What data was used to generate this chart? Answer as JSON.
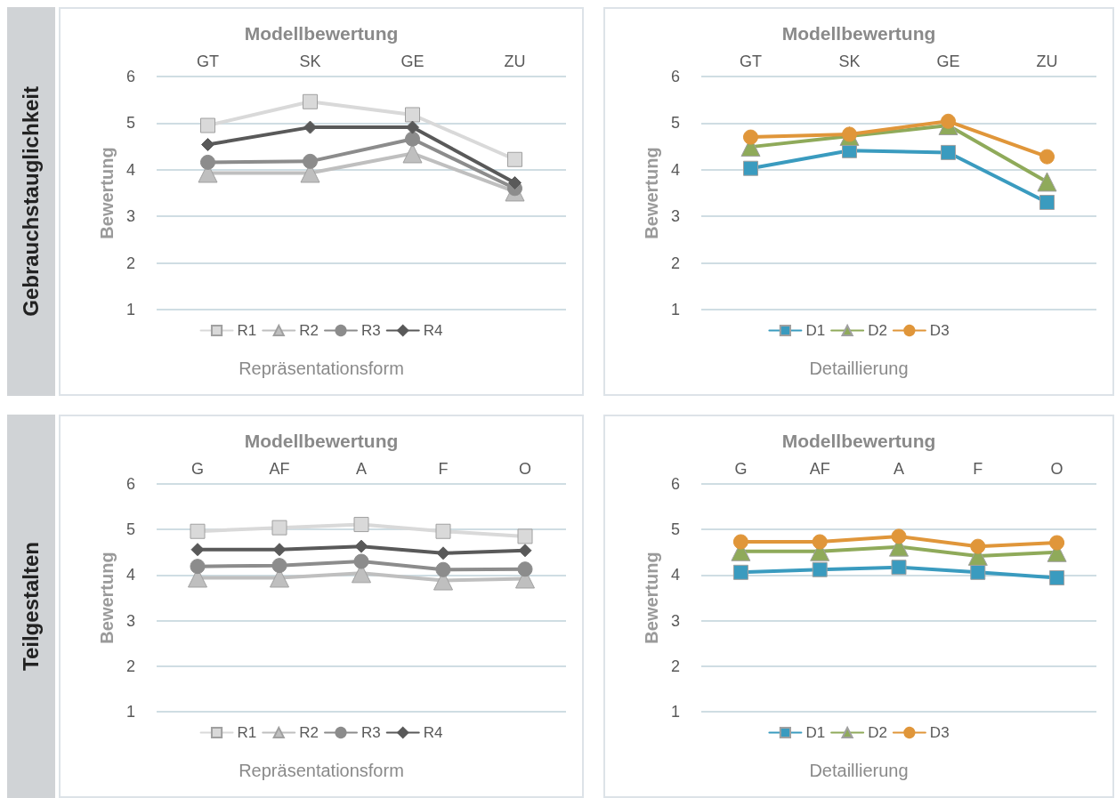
{
  "chart_data": [
    {
      "type": "line",
      "title": "Modellbewertung",
      "xlabel": "Repräsentationsform",
      "ylabel": "Bewertung",
      "annotations": [
        "Gebrauchstauglichkeit"
      ],
      "categories": [
        "GT",
        "SK",
        "GE",
        "ZU"
      ],
      "ylim": [
        1,
        6
      ],
      "yticks": [
        1,
        2,
        3,
        4,
        5,
        6
      ],
      "grid": "y",
      "legend": "bottom",
      "line_style": "solid",
      "series": [
        {
          "name": "R1",
          "color": "#d9d9d9",
          "marker": "square",
          "values": [
            4.95,
            5.46,
            5.18,
            4.22
          ]
        },
        {
          "name": "R2",
          "color": "#bfbfbf",
          "marker": "triangle",
          "values": [
            3.93,
            3.93,
            4.35,
            3.53
          ]
        },
        {
          "name": "R3",
          "color": "#8c8c8c",
          "marker": "circle",
          "values": [
            4.16,
            4.18,
            4.66,
            3.6
          ]
        },
        {
          "name": "R4",
          "color": "#595959",
          "marker": "diamond",
          "values": [
            4.54,
            4.91,
            4.91,
            3.72
          ]
        }
      ]
    },
    {
      "type": "line",
      "title": "Modellbewertung",
      "xlabel": "Detaillierung",
      "ylabel": "Bewertung",
      "categories": [
        "GT",
        "SK",
        "GE",
        "ZU"
      ],
      "ylim": [
        1,
        6
      ],
      "yticks": [
        1,
        2,
        3,
        4,
        5,
        6
      ],
      "grid": "y",
      "legend": "bottom",
      "line_style": "solid",
      "series": [
        {
          "name": "D1",
          "color": "#3a9bbf",
          "marker": "square",
          "values": [
            4.03,
            4.41,
            4.37,
            3.3
          ]
        },
        {
          "name": "D2",
          "color": "#8faa5a",
          "marker": "triangle",
          "values": [
            4.49,
            4.72,
            4.95,
            3.74
          ]
        },
        {
          "name": "D3",
          "color": "#e0963a",
          "marker": "circle",
          "values": [
            4.7,
            4.76,
            5.04,
            4.28
          ]
        }
      ]
    },
    {
      "type": "line",
      "title": "Modellbewertung",
      "xlabel": "Repräsentationsform",
      "ylabel": "Bewertung",
      "annotations": [
        "Teilgestalten"
      ],
      "categories": [
        "G",
        "AF",
        "A",
        "F",
        "O"
      ],
      "ylim": [
        1,
        6
      ],
      "yticks": [
        1,
        2,
        3,
        4,
        5,
        6
      ],
      "grid": "y",
      "legend": "bottom",
      "line_style": "solid",
      "series": [
        {
          "name": "R1",
          "color": "#d9d9d9",
          "marker": "square",
          "values": [
            4.96,
            5.04,
            5.11,
            4.96,
            4.85
          ]
        },
        {
          "name": "R2",
          "color": "#bfbfbf",
          "marker": "triangle",
          "values": [
            3.94,
            3.94,
            4.04,
            3.88,
            3.92
          ]
        },
        {
          "name": "R3",
          "color": "#8c8c8c",
          "marker": "circle",
          "values": [
            4.19,
            4.21,
            4.3,
            4.12,
            4.13
          ]
        },
        {
          "name": "R4",
          "color": "#595959",
          "marker": "diamond",
          "values": [
            4.56,
            4.56,
            4.63,
            4.48,
            4.54
          ]
        }
      ]
    },
    {
      "type": "line",
      "title": "Modellbewertung",
      "xlabel": "Detaillierung",
      "ylabel": "Bewertung",
      "categories": [
        "G",
        "AF",
        "A",
        "F",
        "O"
      ],
      "ylim": [
        1,
        6
      ],
      "yticks": [
        1,
        2,
        3,
        4,
        5,
        6
      ],
      "grid": "y",
      "legend": "bottom",
      "line_style": "solid",
      "series": [
        {
          "name": "D1",
          "color": "#3a9bbf",
          "marker": "square",
          "values": [
            4.06,
            4.12,
            4.17,
            4.06,
            3.94
          ]
        },
        {
          "name": "D2",
          "color": "#8faa5a",
          "marker": "triangle",
          "values": [
            4.52,
            4.52,
            4.62,
            4.42,
            4.5
          ]
        },
        {
          "name": "D3",
          "color": "#e0963a",
          "marker": "circle",
          "values": [
            4.73,
            4.73,
            4.85,
            4.63,
            4.71
          ]
        }
      ]
    }
  ]
}
